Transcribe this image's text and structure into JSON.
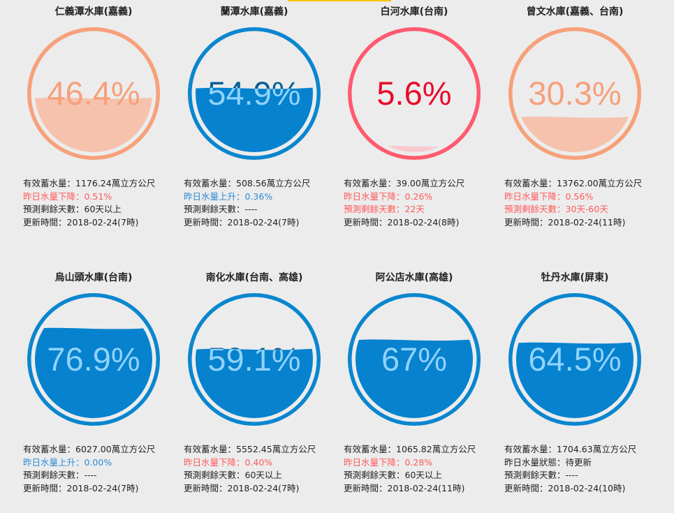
{
  "labels": {
    "storage": "有效蓄水量：",
    "forecast": "預測剩餘天數：",
    "update": "更新時間："
  },
  "colors": {
    "salmon": "#f7a07a",
    "salmon_fill": "#f6c2ad",
    "red": "#ff5a6e",
    "red_text": "#ea0a2a",
    "blue": "#0a86cf",
    "blue_fill": "#0682ce",
    "blue_text": "#8fd3ff"
  },
  "reservoirs": [
    {
      "name": "仁義潭水庫(嘉義)",
      "percent": 46.4,
      "percent_text": "46.4%",
      "storage": "1176.24萬立方公尺",
      "change": "昨日水量下降：0.51%",
      "change_dir": "down",
      "forecast": "60天以上",
      "forecast_warn": false,
      "updated": "2018-02-24(7時)",
      "theme": "salmon"
    },
    {
      "name": "蘭潭水庫(嘉義)",
      "percent": 54.9,
      "percent_text": "54.9%",
      "storage": "508.56萬立方公尺",
      "change": "昨日水量上升：0.36%",
      "change_dir": "up",
      "forecast": "----",
      "forecast_warn": false,
      "updated": "2018-02-24(7時)",
      "theme": "blue"
    },
    {
      "name": "白河水庫(台南)",
      "percent": 5.6,
      "percent_text": "5.6%",
      "storage": "39.00萬立方公尺",
      "change": "昨日水量下降：0.26%",
      "change_dir": "down",
      "forecast": "22天",
      "forecast_warn": true,
      "updated": "2018-02-24(8時)",
      "theme": "red"
    },
    {
      "name": "曾文水庫(嘉義、台南)",
      "percent": 30.3,
      "percent_text": "30.3%",
      "storage": "13762.00萬立方公尺",
      "change": "昨日水量下降：0.56%",
      "change_dir": "down",
      "forecast": "30天-60天",
      "forecast_warn": true,
      "updated": "2018-02-24(11時)",
      "theme": "salmon"
    },
    {
      "name": "烏山頭水庫(台南)",
      "percent": 76.9,
      "percent_text": "76.9%",
      "storage": "6027.00萬立方公尺",
      "change": "昨日水量上升：0.00%",
      "change_dir": "up",
      "forecast": "----",
      "forecast_warn": false,
      "updated": "2018-02-24(7時)",
      "theme": "blue"
    },
    {
      "name": "南化水庫(台南、高雄)",
      "percent": 59.1,
      "percent_text": "59.1%",
      "storage": "5552.45萬立方公尺",
      "change": "昨日水量下降：0.40%",
      "change_dir": "down",
      "forecast": "60天以上",
      "forecast_warn": false,
      "updated": "2018-02-24(7時)",
      "theme": "blue"
    },
    {
      "name": "阿公店水庫(高雄)",
      "percent": 67,
      "percent_text": "67%",
      "storage": "1065.82萬立方公尺",
      "change": "昨日水量下降：0.28%",
      "change_dir": "down",
      "forecast": "60天以上",
      "forecast_warn": false,
      "updated": "2018-02-24(11時)",
      "theme": "blue"
    },
    {
      "name": "牡丹水庫(屏東)",
      "percent": 64.5,
      "percent_text": "64.5%",
      "storage": "1704.63萬立方公尺",
      "change": "昨日水量狀態：待更新",
      "change_dir": "none",
      "forecast": "----",
      "forecast_warn": false,
      "updated": "2018-02-24(10時)",
      "theme": "blue"
    }
  ]
}
